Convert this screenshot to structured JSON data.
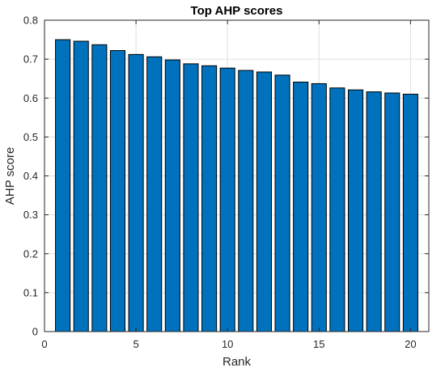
{
  "chart_data": {
    "type": "bar",
    "title": "Top AHP scores",
    "xlabel": "Rank",
    "ylabel": "AHP score",
    "x": [
      1,
      2,
      3,
      4,
      5,
      6,
      7,
      8,
      9,
      10,
      11,
      12,
      13,
      14,
      15,
      16,
      17,
      18,
      19,
      20
    ],
    "values": [
      0.75,
      0.746,
      0.737,
      0.722,
      0.712,
      0.706,
      0.698,
      0.688,
      0.683,
      0.677,
      0.671,
      0.667,
      0.659,
      0.641,
      0.637,
      0.626,
      0.621,
      0.616,
      0.613,
      0.61
    ],
    "xlim": [
      0,
      21
    ],
    "ylim": [
      0,
      0.8
    ],
    "xticks": [
      0,
      5,
      10,
      15,
      20
    ],
    "yticks": [
      0,
      0.1,
      0.2,
      0.3,
      0.4,
      0.5,
      0.6,
      0.7,
      0.8
    ],
    "xtick_labels": [
      "0",
      "5",
      "10",
      "15",
      "20"
    ],
    "ytick_labels": [
      "0",
      "0.1",
      "0.2",
      "0.3",
      "0.4",
      "0.5",
      "0.6",
      "0.7",
      "0.8"
    ],
    "grid": true,
    "bar_color": "#0072BD"
  }
}
